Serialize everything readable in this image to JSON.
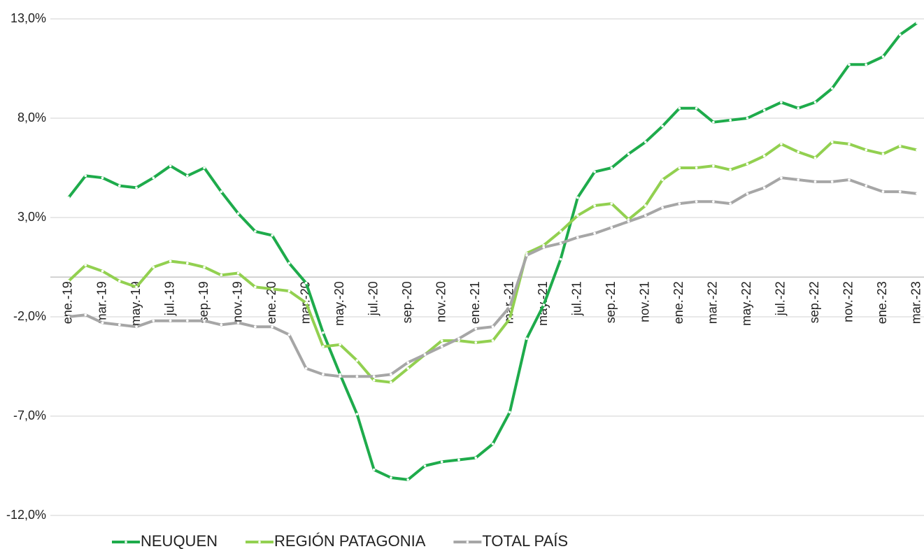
{
  "chart_data": {
    "type": "line",
    "categories": [
      "ene.-19",
      null,
      "mar.-19",
      null,
      "may.-19",
      null,
      "jul.-19",
      null,
      "sep.-19",
      null,
      "nov.-19",
      null,
      "ene.-20",
      null,
      "mar.-20",
      null,
      "may.-20",
      null,
      "jul.-20",
      null,
      "sep.-20",
      null,
      "nov.-20",
      null,
      "ene.-21",
      null,
      "mar.-21",
      null,
      "may.-21",
      null,
      "jul.-21",
      null,
      "sep.-21",
      null,
      "nov.-21",
      null,
      "ene.-22",
      null,
      "mar.-22",
      null,
      "may.-22",
      null,
      "jul.-22",
      null,
      "sep.-22",
      null,
      "nov.-22",
      null,
      "ene.-23",
      null,
      "mar.-23"
    ],
    "series": [
      {
        "name": "NEUQUEN",
        "color": "#1eab4b",
        "values": [
          4.0,
          5.1,
          5.0,
          4.6,
          4.5,
          5.0,
          5.6,
          5.1,
          5.5,
          4.3,
          3.2,
          2.3,
          2.1,
          0.7,
          -0.3,
          -2.8,
          -4.9,
          -6.9,
          -9.7,
          -10.1,
          -10.2,
          -9.5,
          -9.3,
          -9.2,
          -9.1,
          -8.4,
          -6.8,
          -3.1,
          -1.4,
          0.9,
          4.0,
          5.3,
          5.5,
          6.2,
          6.8,
          7.6,
          8.5,
          8.5,
          7.8,
          7.9,
          8.0,
          8.4,
          8.8,
          8.5,
          8.8,
          9.5,
          10.7,
          10.7,
          11.1,
          12.2,
          12.8
        ]
      },
      {
        "name": "REGIÓN PATAGONIA",
        "color": "#92d050",
        "values": [
          -0.2,
          0.6,
          0.3,
          -0.2,
          -0.5,
          0.5,
          0.8,
          0.7,
          0.5,
          0.1,
          0.2,
          -0.5,
          -0.6,
          -0.7,
          -1.3,
          -3.5,
          -3.4,
          -4.2,
          -5.2,
          -5.3,
          -4.6,
          -3.9,
          -3.2,
          -3.2,
          -3.3,
          -3.2,
          -2.1,
          1.2,
          1.6,
          2.3,
          3.1,
          3.6,
          3.7,
          2.9,
          3.6,
          4.9,
          5.5,
          5.5,
          5.6,
          5.4,
          5.7,
          6.1,
          6.7,
          6.3,
          6.0,
          6.8,
          6.7,
          6.4,
          6.2,
          6.6,
          6.4
        ]
      },
      {
        "name": "TOTAL PAÍS",
        "color": "#a6a6a6",
        "values": [
          -2.0,
          -1.9,
          -2.3,
          -2.4,
          -2.5,
          -2.2,
          -2.2,
          -2.2,
          -2.2,
          -2.4,
          -2.3,
          -2.5,
          -2.5,
          -2.9,
          -4.6,
          -4.9,
          -5.0,
          -5.0,
          -5.0,
          -4.9,
          -4.3,
          -3.9,
          -3.5,
          -3.1,
          -2.6,
          -2.5,
          -1.5,
          1.1,
          1.5,
          1.7,
          2.0,
          2.2,
          2.5,
          2.8,
          3.1,
          3.5,
          3.7,
          3.8,
          3.8,
          3.7,
          4.2,
          4.5,
          5.0,
          4.9,
          4.8,
          4.8,
          4.9,
          4.6,
          4.3,
          4.3,
          4.2
        ]
      }
    ],
    "ylim": [
      -12,
      13
    ],
    "yticks": [
      {
        "value": -12,
        "label": "-12,0%"
      },
      {
        "value": -7,
        "label": "-7,0%"
      },
      {
        "value": -2,
        "label": "-2,0%"
      },
      {
        "value": 3,
        "label": "3,0%"
      },
      {
        "value": 8,
        "label": "8,0%"
      },
      {
        "value": 13,
        "label": "13,0%"
      }
    ],
    "grid": true,
    "legend": "bottom"
  }
}
